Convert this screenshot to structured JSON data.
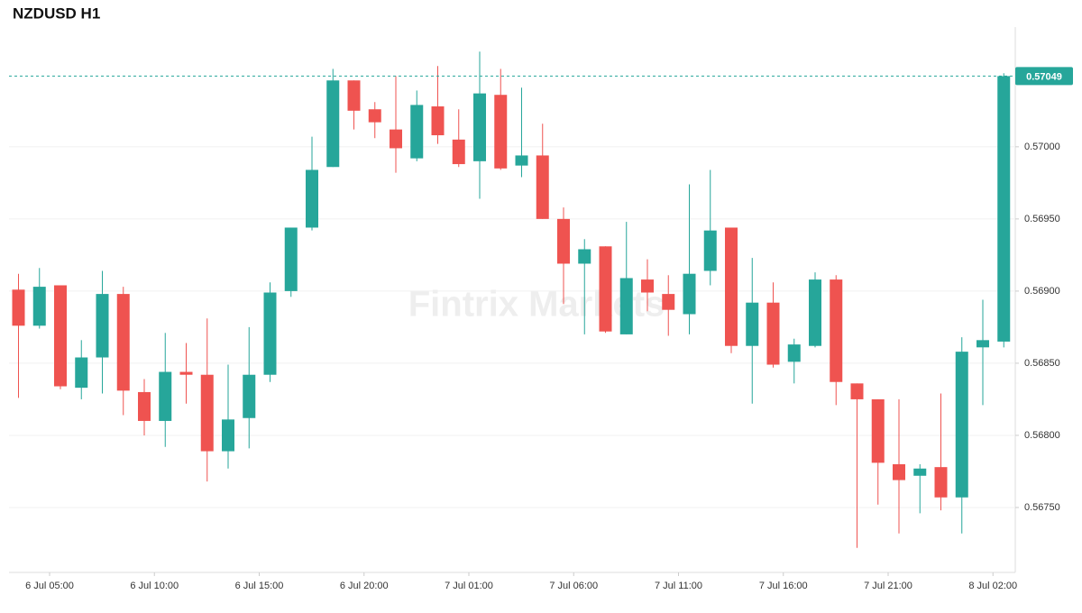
{
  "chart_data": {
    "type": "candlestick",
    "title": "NZDUSD H1",
    "watermark": "Fintrix Markets",
    "up_color": "#26a69a",
    "down_color": "#ef5350",
    "categories": [
      null,
      null,
      "6 Jul 05:00",
      null,
      null,
      null,
      null,
      "6 Jul 10:00",
      null,
      null,
      null,
      null,
      "6 Jul 15:00",
      null,
      null,
      null,
      null,
      "6 Jul 20:00",
      null,
      null,
      null,
      null,
      "7 Jul 01:00",
      null,
      null,
      null,
      null,
      "7 Jul 06:00",
      null,
      null,
      null,
      null,
      "7 Jul 11:00",
      null,
      null,
      null,
      null,
      "7 Jul 16:00",
      null,
      null,
      null,
      null,
      "7 Jul 21:00",
      null,
      null,
      null,
      null,
      "8 Jul 02:00"
    ],
    "open": [
      0.56901,
      0.56876,
      0.56904,
      0.56833,
      0.56854,
      0.56898,
      0.5683,
      0.5681,
      0.56844,
      0.56842,
      0.56789,
      0.56812,
      0.56842,
      0.569,
      0.56944,
      0.56986,
      0.57046,
      0.57026,
      0.57012,
      0.56992,
      0.57028,
      0.57005,
      0.5699,
      0.57036,
      0.56987,
      0.56994,
      0.5695,
      0.56919,
      0.56931,
      0.5687,
      0.56908,
      0.56898,
      0.56884,
      0.56914,
      0.56944,
      0.56862,
      0.56892,
      0.56851,
      0.56862,
      0.56908,
      0.56836,
      0.56825,
      0.5678,
      0.56772,
      0.56778,
      0.56757,
      0.56861,
      0.56865
    ],
    "high": [
      0.56912,
      0.56916,
      0.56904,
      0.56866,
      0.56914,
      0.56903,
      0.56839,
      0.56871,
      0.56864,
      0.56881,
      0.56849,
      0.56875,
      0.56906,
      0.56944,
      0.57007,
      0.57054,
      0.57046,
      0.57031,
      0.57049,
      0.57039,
      0.57056,
      0.57026,
      0.57066,
      0.57054,
      0.57041,
      0.57016,
      0.56958,
      0.56936,
      0.56931,
      0.56948,
      0.56922,
      0.56911,
      0.56974,
      0.56984,
      0.56944,
      0.56923,
      0.56906,
      0.56867,
      0.56913,
      0.56911,
      0.56836,
      0.56825,
      0.56825,
      0.5678,
      0.56829,
      0.56868,
      0.56894,
      0.57051
    ],
    "low": [
      0.56826,
      0.56874,
      0.56832,
      0.56825,
      0.56829,
      0.56814,
      0.568,
      0.56792,
      0.56822,
      0.56768,
      0.56777,
      0.56791,
      0.56837,
      0.56896,
      0.56942,
      0.56986,
      0.57012,
      0.57006,
      0.56982,
      0.5699,
      0.57002,
      0.56986,
      0.56964,
      0.56984,
      0.56979,
      0.5695,
      0.56891,
      0.5687,
      0.56871,
      0.5687,
      0.56886,
      0.56869,
      0.5687,
      0.56904,
      0.56857,
      0.56822,
      0.56847,
      0.56836,
      0.56861,
      0.56821,
      0.56722,
      0.56752,
      0.56732,
      0.56746,
      0.56748,
      0.56732,
      0.56821,
      0.56861
    ],
    "close": [
      0.56876,
      0.56903,
      0.56834,
      0.56854,
      0.56898,
      0.56831,
      0.5681,
      0.56844,
      0.56842,
      0.56789,
      0.56811,
      0.56842,
      0.56899,
      0.56944,
      0.56984,
      0.57046,
      0.57025,
      0.57017,
      0.56999,
      0.57029,
      0.57008,
      0.56988,
      0.57037,
      0.56985,
      0.56994,
      0.5695,
      0.56919,
      0.56929,
      0.56872,
      0.56909,
      0.56899,
      0.56887,
      0.56912,
      0.56942,
      0.56862,
      0.56892,
      0.56849,
      0.56863,
      0.56908,
      0.56837,
      0.56825,
      0.56781,
      0.56769,
      0.56777,
      0.56757,
      0.56858,
      0.56866,
      0.57049
    ],
    "last_price": 0.57049,
    "ylim": [
      0.56705,
      0.57083
    ],
    "yticks": [
      {
        "value": 0.5675,
        "label": "0.56750"
      },
      {
        "value": 0.568,
        "label": "0.56800"
      },
      {
        "value": 0.5685,
        "label": "0.56850"
      },
      {
        "value": 0.569,
        "label": "0.56900"
      },
      {
        "value": 0.5695,
        "label": "0.56950"
      },
      {
        "value": 0.57,
        "label": "0.57000"
      }
    ],
    "grid": true
  }
}
